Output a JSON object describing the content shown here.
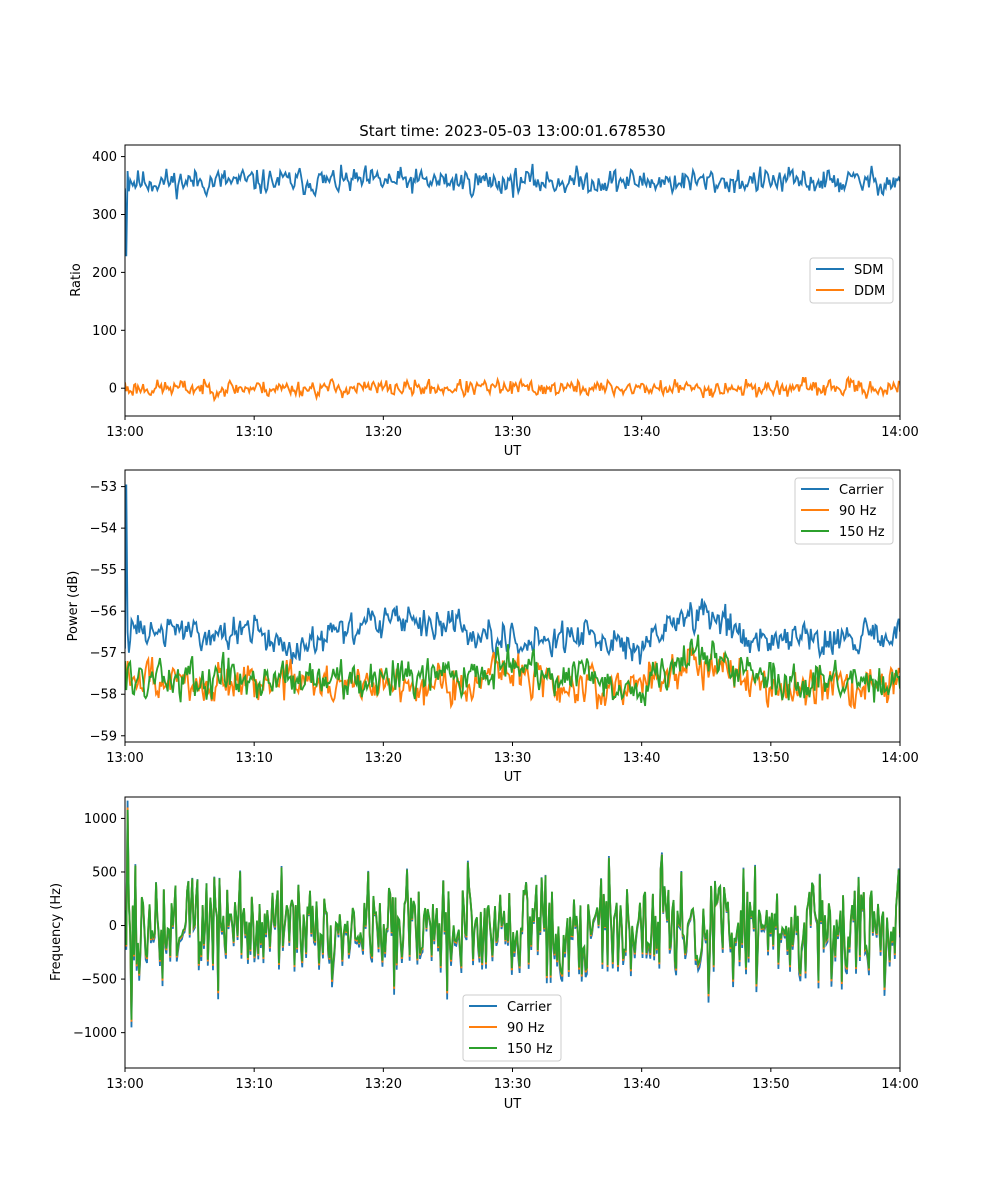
{
  "title": "Start time: 2023-05-03 13:00:01.678530",
  "colors": {
    "blue": "#1f77b4",
    "orange": "#ff7f0e",
    "green": "#2ca02c"
  },
  "chart_data": [
    {
      "type": "line",
      "title": "Start time: 2023-05-03 13:00:01.678530",
      "xlabel": "UT",
      "ylabel": "Ratio",
      "xlim": [
        "13:00",
        "14:00"
      ],
      "ylim": [
        -48,
        420
      ],
      "xticks": [
        "13:00",
        "13:10",
        "13:20",
        "13:30",
        "13:40",
        "13:50",
        "14:00"
      ],
      "yticks": [
        0,
        100,
        200,
        300,
        400
      ],
      "legend": "center-right",
      "series": [
        {
          "name": "SDM",
          "color": "#1f77b4",
          "kind": "noise",
          "base": 357,
          "amp": 14,
          "seed": 11,
          "start": [
            345,
            228,
            375,
            340,
            360
          ]
        },
        {
          "name": "DDM",
          "color": "#ff7f0e",
          "kind": "noise",
          "base": 0,
          "amp": 9,
          "seed": 23,
          "start": [
            10,
            -5,
            3,
            -8
          ]
        }
      ]
    },
    {
      "type": "line",
      "xlabel": "UT",
      "ylabel": "Power (dB)",
      "xlim": [
        "13:00",
        "14:00"
      ],
      "ylim": [
        -59.15,
        -52.6
      ],
      "xticks": [
        "13:00",
        "13:10",
        "13:20",
        "13:30",
        "13:40",
        "13:50",
        "14:00"
      ],
      "yticks": [
        -53,
        -54,
        -55,
        -56,
        -57,
        -58,
        -59
      ],
      "legend": "top-right",
      "series": [
        {
          "name": "Carrier",
          "color": "#1f77b4",
          "kind": "trend",
          "amp": 0.28,
          "seed": 31,
          "trend": [
            [
              0,
              -56.5
            ],
            [
              10,
              -56.5
            ],
            [
              13,
              -56.9
            ],
            [
              20,
              -56.2
            ],
            [
              25,
              -56.3
            ],
            [
              30,
              -56.7
            ],
            [
              36,
              -56.6
            ],
            [
              40,
              -56.9
            ],
            [
              43,
              -56.2
            ],
            [
              45,
              -56.0
            ],
            [
              48,
              -56.6
            ],
            [
              55,
              -56.6
            ],
            [
              60,
              -56.7
            ]
          ],
          "start": [
            -56.9,
            -52.95,
            -56.5,
            -57.0
          ]
        },
        {
          "name": "90 Hz",
          "color": "#ff7f0e",
          "kind": "trend",
          "amp": 0.35,
          "seed": 47,
          "trend": [
            [
              0,
              -57.7
            ],
            [
              15,
              -57.7
            ],
            [
              25,
              -57.8
            ],
            [
              30,
              -57.4
            ],
            [
              35,
              -57.9
            ],
            [
              40,
              -57.7
            ],
            [
              44,
              -57.2
            ],
            [
              50,
              -57.8
            ],
            [
              60,
              -57.8
            ]
          ],
          "start": [
            -57.3,
            -57.6,
            -57.2
          ]
        },
        {
          "name": "150 Hz",
          "color": "#2ca02c",
          "kind": "trend",
          "amp": 0.33,
          "seed": 59,
          "trend": [
            [
              0,
              -57.6
            ],
            [
              10,
              -57.6
            ],
            [
              20,
              -57.6
            ],
            [
              30,
              -57.3
            ],
            [
              35,
              -57.6
            ],
            [
              40,
              -57.8
            ],
            [
              44,
              -57.0
            ],
            [
              50,
              -57.6
            ],
            [
              60,
              -57.8
            ]
          ],
          "start": [
            -57.2,
            -57.9,
            -57.4
          ]
        }
      ]
    },
    {
      "type": "line",
      "xlabel": "UT",
      "ylabel": "Frequency (Hz)",
      "xlim": [
        "13:00",
        "14:00"
      ],
      "ylim": [
        -1330,
        1200
      ],
      "xticks": [
        "13:00",
        "13:10",
        "13:20",
        "13:30",
        "13:40",
        "13:50",
        "14:00"
      ],
      "yticks": [
        1000,
        500,
        0,
        -500,
        -1000
      ],
      "legend": "bottom-center",
      "series": [
        {
          "name": "Carrier",
          "color": "#1f77b4",
          "kind": "freq",
          "amp": 470,
          "seed": 73,
          "scale": 1.08,
          "offset": -30
        },
        {
          "name": "90 Hz",
          "color": "#ff7f0e",
          "kind": "freq",
          "amp": 470,
          "seed": 73,
          "scale": 1.02,
          "offset": -10
        },
        {
          "name": "150 Hz",
          "color": "#2ca02c",
          "kind": "freq",
          "amp": 470,
          "seed": 73,
          "scale": 1.0,
          "offset": 0
        }
      ]
    }
  ]
}
